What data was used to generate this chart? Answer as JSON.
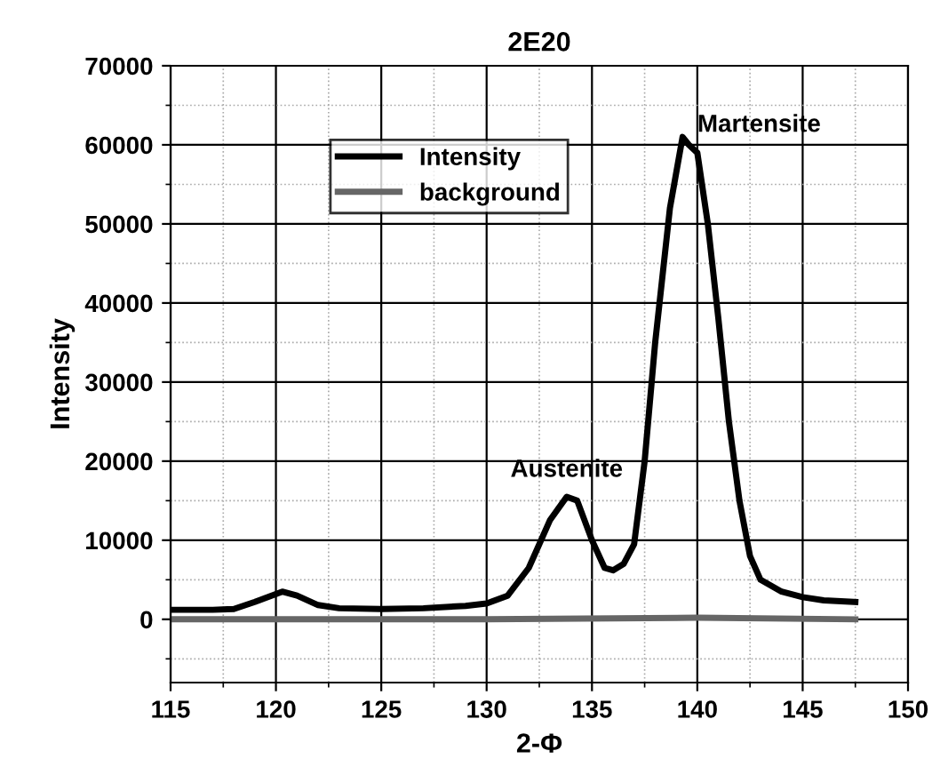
{
  "chart_data": {
    "type": "line",
    "title": "2E20",
    "xlabel": "2-Φ",
    "ylabel": "Intensity",
    "xlim": [
      115,
      150
    ],
    "xticks": [
      115,
      120,
      125,
      130,
      135,
      140,
      145,
      150
    ],
    "ylim": [
      -8000,
      70000
    ],
    "yticks": [
      0,
      10000,
      20000,
      30000,
      40000,
      50000,
      60000,
      70000
    ],
    "grid": true,
    "legend": "top left",
    "marker": "none",
    "line_style": "solid",
    "annotations": [
      {
        "text": "Austenite",
        "x": 133.8,
        "y": 15500
      },
      {
        "text": "Martensite",
        "x": 139.3,
        "y": 61000
      }
    ],
    "series": [
      {
        "name": "Intensity",
        "color": "#000000",
        "x": [
          115,
          117,
          118,
          119,
          120.3,
          121,
          122,
          123,
          125,
          127,
          129,
          130,
          131,
          132,
          133,
          133.8,
          134.3,
          135,
          135.6,
          136,
          136.5,
          137,
          137.5,
          138,
          138.7,
          139.3,
          139.6,
          140,
          140.5,
          141,
          141.5,
          142,
          142.5,
          143,
          144,
          145,
          146,
          147.5
        ],
        "values": [
          1200,
          1200,
          1300,
          2200,
          3500,
          3000,
          1800,
          1400,
          1300,
          1400,
          1700,
          2000,
          3000,
          6500,
          12500,
          15500,
          15000,
          10000,
          6500,
          6200,
          7000,
          9500,
          20000,
          35000,
          52000,
          61000,
          60000,
          59000,
          50000,
          38000,
          25000,
          15000,
          8000,
          5000,
          3500,
          2800,
          2400,
          2200
        ]
      },
      {
        "name": "background",
        "color": "#666666",
        "x": [
          115,
          130,
          140,
          147.5
        ],
        "values": [
          0,
          0,
          200,
          0
        ]
      }
    ]
  }
}
